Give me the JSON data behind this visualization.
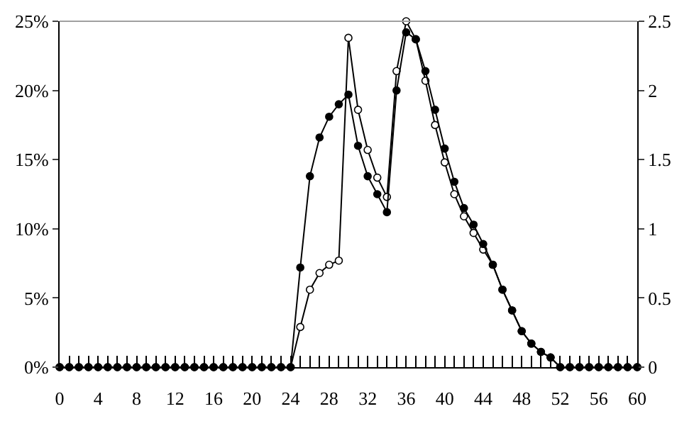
{
  "chart_data": {
    "type": "line",
    "line_style": "solid",
    "x": [
      0,
      1,
      2,
      3,
      4,
      5,
      6,
      7,
      8,
      9,
      10,
      11,
      12,
      13,
      14,
      15,
      16,
      17,
      18,
      19,
      20,
      21,
      22,
      23,
      24,
      25,
      26,
      27,
      28,
      29,
      30,
      31,
      32,
      33,
      34,
      35,
      36,
      37,
      38,
      39,
      40,
      41,
      42,
      43,
      44,
      45,
      46,
      47,
      48,
      49,
      50,
      51,
      52,
      53,
      54,
      55,
      56,
      57,
      58,
      59,
      60
    ],
    "xlim": [
      0,
      60
    ],
    "xticks": [
      0,
      {
        "value": 1,
        "label": null
      },
      {
        "value": 2,
        "label": null
      },
      {
        "value": 3,
        "label": null
      },
      4,
      {
        "value": 5,
        "label": null
      },
      {
        "value": 6,
        "label": null
      },
      {
        "value": 7,
        "label": null
      },
      8,
      {
        "value": 9,
        "label": null
      },
      {
        "value": 10,
        "label": null
      },
      {
        "value": 11,
        "label": null
      },
      12,
      {
        "value": 13,
        "label": null
      },
      {
        "value": 14,
        "label": null
      },
      {
        "value": 15,
        "label": null
      },
      16,
      {
        "value": 17,
        "label": null
      },
      {
        "value": 18,
        "label": null
      },
      {
        "value": 19,
        "label": null
      },
      20,
      {
        "value": 21,
        "label": null
      },
      {
        "value": 22,
        "label": null
      },
      {
        "value": 23,
        "label": null
      },
      24,
      {
        "value": 25,
        "label": null
      },
      {
        "value": 26,
        "label": null
      },
      {
        "value": 27,
        "label": null
      },
      28,
      {
        "value": 29,
        "label": null
      },
      {
        "value": 30,
        "label": null
      },
      {
        "value": 31,
        "label": null
      },
      32,
      {
        "value": 33,
        "label": null
      },
      {
        "value": 34,
        "label": null
      },
      {
        "value": 35,
        "label": null
      },
      36,
      {
        "value": 37,
        "label": null
      },
      {
        "value": 38,
        "label": null
      },
      {
        "value": 39,
        "label": null
      },
      40,
      {
        "value": 41,
        "label": null
      },
      {
        "value": 42,
        "label": null
      },
      {
        "value": 43,
        "label": null
      },
      44,
      {
        "value": 45,
        "label": null
      },
      {
        "value": 46,
        "label": null
      },
      {
        "value": 47,
        "label": null
      },
      48,
      {
        "value": 49,
        "label": null
      },
      {
        "value": 50,
        "label": null
      },
      {
        "value": 51,
        "label": null
      },
      52,
      {
        "value": 53,
        "label": null
      },
      {
        "value": 54,
        "label": null
      },
      {
        "value": 55,
        "label": null
      },
      56,
      {
        "value": 57,
        "label": null
      },
      {
        "value": 58,
        "label": null
      },
      {
        "value": 59,
        "label": null
      },
      60
    ],
    "ylim": [
      0,
      25
    ],
    "yticks": [
      {
        "value": 0,
        "label": "0%"
      },
      {
        "value": 5,
        "label": "5%"
      },
      {
        "value": 10,
        "label": "10%"
      },
      {
        "value": 15,
        "label": "15%"
      },
      {
        "value": 20,
        "label": "20%"
      },
      {
        "value": 25,
        "label": "25%"
      }
    ],
    "y2lim": [
      0,
      2.5
    ],
    "y2ticks": [
      0,
      0.5,
      1,
      1.5,
      2,
      2.5
    ],
    "series": [
      {
        "color": "#000000",
        "marker": "circle-open",
        "values": [
          0,
          0,
          0,
          0,
          0,
          0,
          0,
          0,
          0,
          0,
          0,
          0,
          0,
          0,
          0,
          0,
          0,
          0,
          0,
          0,
          0,
          0,
          0,
          0,
          0,
          2.9,
          5.6,
          6.8,
          7.4,
          7.7,
          23.8,
          18.6,
          15.7,
          13.7,
          12.3,
          21.4,
          25.0,
          23.7,
          20.7,
          17.5,
          14.8,
          12.5,
          10.9,
          9.7,
          8.5,
          7.4,
          5.6,
          4.1,
          2.6,
          1.7,
          1.1,
          0.7,
          0,
          0,
          0,
          0,
          0,
          0,
          0,
          0,
          0
        ]
      },
      {
        "color": "#000000",
        "marker": "circle",
        "axis": "y2",
        "values": [
          0,
          0,
          0,
          0,
          0,
          0,
          0,
          0,
          0,
          0,
          0,
          0,
          0,
          0,
          0,
          0,
          0,
          0,
          0,
          0,
          0,
          0,
          0,
          0,
          0,
          0.72,
          1.38,
          1.66,
          1.81,
          1.9,
          1.97,
          1.6,
          1.38,
          1.25,
          1.12,
          2.0,
          2.42,
          2.37,
          2.14,
          1.86,
          1.58,
          1.34,
          1.15,
          1.03,
          0.89,
          0.74,
          0.56,
          0.41,
          0.26,
          0.17,
          0.11,
          0.07,
          0,
          0,
          0,
          0,
          0,
          0,
          0,
          0,
          0
        ]
      }
    ]
  }
}
